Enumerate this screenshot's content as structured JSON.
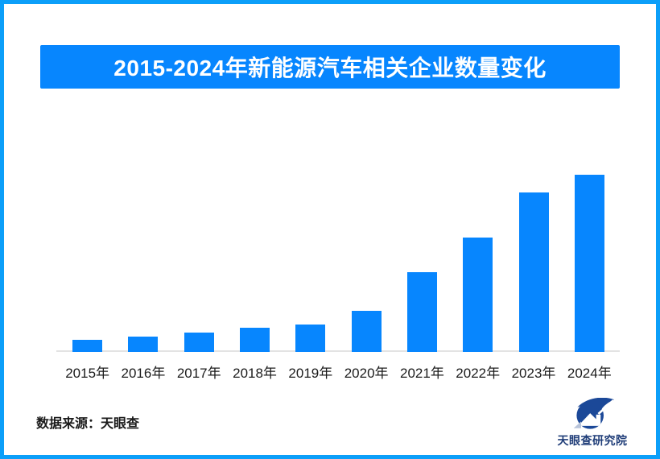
{
  "frame": {
    "border_color": "#0C9FF9",
    "background": "#ffffff"
  },
  "banner": {
    "title": "2015-2024年新能源汽车相关企业数量变化",
    "bg_color": "#0786FE",
    "text_color": "#ffffff"
  },
  "chart_data": {
    "type": "bar",
    "title": "2015-2024年新能源汽车相关企业数量变化",
    "categories": [
      "2015年",
      "2016年",
      "2017年",
      "2018年",
      "2019年",
      "2020年",
      "2021年",
      "2022年",
      "2023年",
      "2024年"
    ],
    "values": [
      15,
      19,
      24,
      30,
      34,
      51,
      99,
      142,
      198,
      220
    ],
    "xlabel": "",
    "ylabel": "",
    "ylim": [
      0,
      230
    ],
    "grid": false,
    "legend": "none",
    "y_axis_visible": false,
    "bar_color": "#0786FE",
    "axis_line_color": "#e3e3e3",
    "tick_label_color": "#1b1b1b"
  },
  "footer": {
    "source_label": "数据来源：天眼查",
    "logo_icon": "tianyancha-eye-icon",
    "logo_text": "天眼查研究院",
    "logo_mark_color": "#1B4898",
    "logo_accent_color": "#B8C4DA",
    "logo_text_color": "#1F3D78"
  }
}
